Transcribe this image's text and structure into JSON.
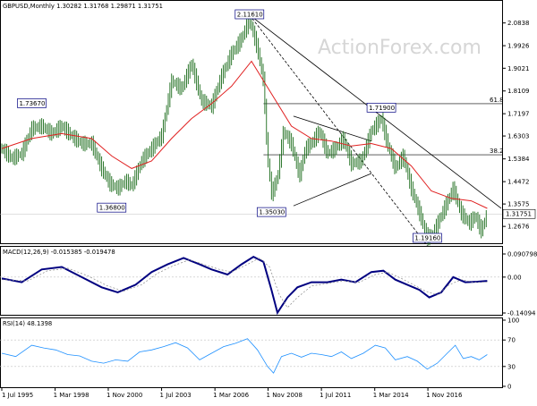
{
  "chart_data": [
    {
      "type": "candlestick",
      "title": "GBPUSD,Monthly  1.30282 1.31768 1.29871 1.31751",
      "watermark": "ActionForex.com",
      "ylim": [
        1.2,
        2.14
      ],
      "y_ticks": [
        2.0838,
        1.9926,
        1.9021,
        1.8109,
        1.7197,
        1.6303,
        1.5384,
        1.4472,
        1.3575,
        1.2676
      ],
      "x_ticks": [
        "1 Jul 1995",
        "1 Mar 1998",
        "1 Nov 2000",
        "1 Jul 2003",
        "1 Mar 2006",
        "1 Nov 2008",
        "1 Jul 2011",
        "1 Mar 2014",
        "1 Nov 2016"
      ],
      "last_price": 1.31751,
      "fib_levels": [
        {
          "label": "61.8",
          "value": 1.76
        },
        {
          "label": "38.2",
          "value": 1.555
        }
      ],
      "price_path": [
        [
          1995.5,
          1.58
        ],
        [
          1996.0,
          1.54
        ],
        [
          1996.5,
          1.56
        ],
        [
          1997.0,
          1.66
        ],
        [
          1997.5,
          1.67
        ],
        [
          1998.0,
          1.64
        ],
        [
          1998.5,
          1.67
        ],
        [
          1999.0,
          1.63
        ],
        [
          1999.5,
          1.6
        ],
        [
          2000.0,
          1.6
        ],
        [
          2000.5,
          1.5
        ],
        [
          2000.9,
          1.44
        ],
        [
          2001.3,
          1.42
        ],
        [
          2001.7,
          1.45
        ],
        [
          2002.0,
          1.43
        ],
        [
          2002.5,
          1.53
        ],
        [
          2003.0,
          1.58
        ],
        [
          2003.5,
          1.63
        ],
        [
          2004.0,
          1.85
        ],
        [
          2004.5,
          1.82
        ],
        [
          2005.0,
          1.92
        ],
        [
          2005.5,
          1.77
        ],
        [
          2006.0,
          1.75
        ],
        [
          2006.5,
          1.87
        ],
        [
          2007.0,
          1.96
        ],
        [
          2007.5,
          2.02
        ],
        [
          2007.9,
          2.1
        ],
        [
          2008.3,
          1.98
        ],
        [
          2008.6,
          1.85
        ],
        [
          2008.8,
          1.55
        ],
        [
          2009.0,
          1.4
        ],
        [
          2009.3,
          1.46
        ],
        [
          2009.6,
          1.65
        ],
        [
          2010.0,
          1.6
        ],
        [
          2010.4,
          1.47
        ],
        [
          2010.7,
          1.58
        ],
        [
          2011.0,
          1.6
        ],
        [
          2011.4,
          1.65
        ],
        [
          2011.8,
          1.56
        ],
        [
          2012.2,
          1.58
        ],
        [
          2012.6,
          1.62
        ],
        [
          2013.0,
          1.52
        ],
        [
          2013.5,
          1.53
        ],
        [
          2014.0,
          1.65
        ],
        [
          2014.5,
          1.7
        ],
        [
          2014.8,
          1.6
        ],
        [
          2015.2,
          1.5
        ],
        [
          2015.6,
          1.55
        ],
        [
          2016.0,
          1.42
        ],
        [
          2016.5,
          1.3
        ],
        [
          2016.8,
          1.22
        ],
        [
          2017.1,
          1.24
        ],
        [
          2017.6,
          1.33
        ],
        [
          2018.1,
          1.42
        ],
        [
          2018.5,
          1.32
        ],
        [
          2018.9,
          1.28
        ],
        [
          2019.2,
          1.31
        ],
        [
          2019.5,
          1.25
        ],
        [
          2019.8,
          1.32
        ]
      ],
      "ma_path": [
        [
          1995.5,
          1.58
        ],
        [
          1997.0,
          1.62
        ],
        [
          1998.5,
          1.64
        ],
        [
          2000.0,
          1.62
        ],
        [
          2001.0,
          1.55
        ],
        [
          2002.0,
          1.5
        ],
        [
          2003.0,
          1.53
        ],
        [
          2004.0,
          1.62
        ],
        [
          2005.0,
          1.7
        ],
        [
          2006.0,
          1.76
        ],
        [
          2007.0,
          1.83
        ],
        [
          2008.0,
          1.93
        ],
        [
          2009.0,
          1.8
        ],
        [
          2010.0,
          1.67
        ],
        [
          2011.0,
          1.62
        ],
        [
          2012.0,
          1.61
        ],
        [
          2013.0,
          1.59
        ],
        [
          2014.0,
          1.6
        ],
        [
          2015.0,
          1.58
        ],
        [
          2016.0,
          1.51
        ],
        [
          2017.0,
          1.41
        ],
        [
          2018.0,
          1.38
        ],
        [
          2019.0,
          1.37
        ],
        [
          2019.8,
          1.34
        ]
      ],
      "annotations": [
        {
          "label": "1.73670",
          "x": 1997.0,
          "y": 1.7367
        },
        {
          "label": "1.36800",
          "x": 2001.0,
          "y": 1.368
        },
        {
          "label": "2.11610",
          "x": 2007.9,
          "y": 2.1161
        },
        {
          "label": "1.35030",
          "x": 2009.0,
          "y": 1.3503
        },
        {
          "label": "1.71900",
          "x": 2014.5,
          "y": 1.719
        },
        {
          "label": "1.19160",
          "x": 2016.8,
          "y": 1.1916
        }
      ],
      "trendlines": [
        {
          "points": [
            [
              2007.9,
              2.1161
            ],
            [
              2020.5,
              1.34
            ]
          ],
          "style": "solid"
        },
        {
          "points": [
            [
              2007.9,
              2.1161
            ],
            [
              2016.8,
              1.19
            ]
          ],
          "style": "dashed"
        },
        {
          "points": [
            [
              2010.1,
              1.71
            ],
            [
              2014.0,
              1.61
            ]
          ],
          "style": "solid"
        },
        {
          "points": [
            [
              2010.1,
              1.35
            ],
            [
              2014.0,
              1.48
            ]
          ],
          "style": "solid"
        }
      ]
    },
    {
      "type": "line",
      "title": "MACD(12,26,9) -0.015385 -0.019478",
      "y_ticks": [
        "0.090798",
        "0.00",
        "-0.14094"
      ],
      "ylim": [
        -0.14094,
        0.090798
      ],
      "series": [
        {
          "values": [
            [
              1995.5,
              -0.005
            ],
            [
              1996.5,
              -0.02
            ],
            [
              1997.5,
              0.03
            ],
            [
              1998.5,
              0.04
            ],
            [
              1999.5,
              0.0
            ],
            [
              2000.5,
              -0.04
            ],
            [
              2001.3,
              -0.06
            ],
            [
              2002.2,
              -0.03
            ],
            [
              2003.0,
              0.02
            ],
            [
              2003.8,
              0.05
            ],
            [
              2004.6,
              0.075
            ],
            [
              2005.4,
              0.05
            ],
            [
              2006.0,
              0.03
            ],
            [
              2006.8,
              0.01
            ],
            [
              2007.5,
              0.05
            ],
            [
              2008.1,
              0.08
            ],
            [
              2008.6,
              0.06
            ],
            [
              2009.0,
              -0.05
            ],
            [
              2009.3,
              -0.14
            ],
            [
              2009.8,
              -0.08
            ],
            [
              2010.3,
              -0.04
            ],
            [
              2011.0,
              -0.02
            ],
            [
              2011.8,
              -0.02
            ],
            [
              2012.5,
              -0.01
            ],
            [
              2013.2,
              -0.02
            ],
            [
              2014.0,
              0.02
            ],
            [
              2014.6,
              0.025
            ],
            [
              2015.2,
              -0.01
            ],
            [
              2015.8,
              -0.03
            ],
            [
              2016.4,
              -0.05
            ],
            [
              2016.9,
              -0.08
            ],
            [
              2017.5,
              -0.06
            ],
            [
              2018.1,
              0.0
            ],
            [
              2018.7,
              -0.02
            ],
            [
              2019.3,
              -0.018
            ],
            [
              2019.8,
              -0.015
            ]
          ]
        },
        {
          "values": [
            [
              1995.5,
              -0.01
            ],
            [
              1996.8,
              -0.015
            ],
            [
              1997.8,
              0.025
            ],
            [
              1998.8,
              0.035
            ],
            [
              1999.8,
              0.005
            ],
            [
              2000.8,
              -0.035
            ],
            [
              2001.6,
              -0.055
            ],
            [
              2002.5,
              -0.03
            ],
            [
              2003.3,
              0.015
            ],
            [
              2004.1,
              0.045
            ],
            [
              2004.9,
              0.068
            ],
            [
              2005.6,
              0.05
            ],
            [
              2006.4,
              0.03
            ],
            [
              2007.0,
              0.02
            ],
            [
              2007.8,
              0.05
            ],
            [
              2008.4,
              0.075
            ],
            [
              2008.9,
              0.04
            ],
            [
              2009.4,
              -0.07
            ],
            [
              2009.8,
              -0.12
            ],
            [
              2010.3,
              -0.08
            ],
            [
              2011.0,
              -0.035
            ],
            [
              2011.8,
              -0.025
            ],
            [
              2012.6,
              -0.015
            ],
            [
              2013.4,
              -0.02
            ],
            [
              2014.2,
              0.01
            ],
            [
              2014.8,
              0.02
            ],
            [
              2015.5,
              -0.005
            ],
            [
              2016.1,
              -0.03
            ],
            [
              2016.7,
              -0.055
            ],
            [
              2017.3,
              -0.07
            ],
            [
              2017.9,
              -0.03
            ],
            [
              2018.5,
              -0.01
            ],
            [
              2019.1,
              -0.02
            ],
            [
              2019.8,
              -0.019
            ]
          ]
        }
      ]
    },
    {
      "type": "line",
      "title": "RSI(14) 48.1398",
      "y_ticks": [
        "100",
        "70",
        "30",
        "0"
      ],
      "ylim": [
        0,
        100
      ],
      "levels": [
        70,
        30
      ],
      "series": [
        {
          "values": [
            [
              1995.5,
              50
            ],
            [
              1996.2,
              45
            ],
            [
              1997.0,
              62
            ],
            [
              1997.6,
              58
            ],
            [
              1998.2,
              55
            ],
            [
              1998.8,
              48
            ],
            [
              1999.4,
              46
            ],
            [
              2000.0,
              38
            ],
            [
              2000.6,
              35
            ],
            [
              2001.2,
              40
            ],
            [
              2001.8,
              38
            ],
            [
              2002.4,
              52
            ],
            [
              2003.0,
              55
            ],
            [
              2003.6,
              60
            ],
            [
              2004.2,
              66
            ],
            [
              2004.8,
              58
            ],
            [
              2005.4,
              40
            ],
            [
              2006.0,
              50
            ],
            [
              2006.6,
              60
            ],
            [
              2007.2,
              65
            ],
            [
              2007.8,
              72
            ],
            [
              2008.3,
              55
            ],
            [
              2008.8,
              30
            ],
            [
              2009.1,
              20
            ],
            [
              2009.5,
              45
            ],
            [
              2010.0,
              50
            ],
            [
              2010.5,
              44
            ],
            [
              2011.0,
              50
            ],
            [
              2011.5,
              48
            ],
            [
              2012.0,
              45
            ],
            [
              2012.5,
              52
            ],
            [
              2013.0,
              42
            ],
            [
              2013.6,
              50
            ],
            [
              2014.2,
              62
            ],
            [
              2014.7,
              58
            ],
            [
              2015.2,
              40
            ],
            [
              2015.8,
              45
            ],
            [
              2016.3,
              38
            ],
            [
              2016.8,
              26
            ],
            [
              2017.3,
              35
            ],
            [
              2017.8,
              50
            ],
            [
              2018.2,
              62
            ],
            [
              2018.6,
              42
            ],
            [
              2019.0,
              45
            ],
            [
              2019.4,
              40
            ],
            [
              2019.8,
              48
            ]
          ]
        }
      ]
    }
  ]
}
